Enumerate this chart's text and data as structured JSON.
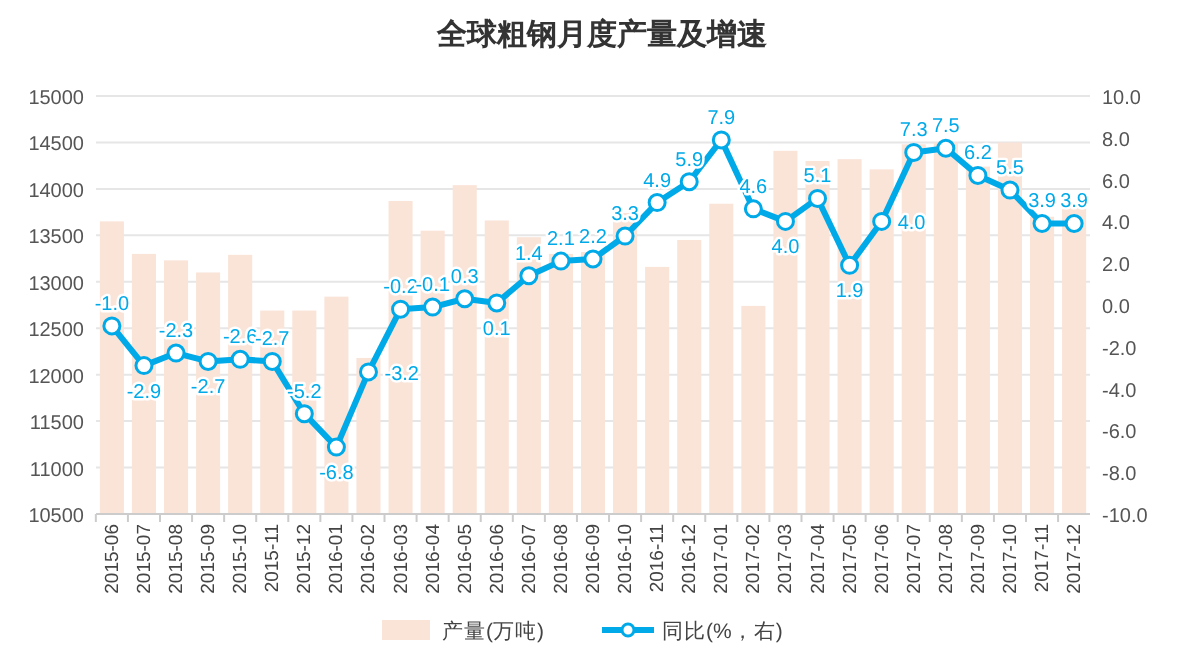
{
  "chart_data": {
    "type": "bar",
    "title": "全球粗钢月度产量及增速",
    "categories": [
      "2015-06",
      "2015-07",
      "2015-08",
      "2015-09",
      "2015-10",
      "2015-11",
      "2015-12",
      "2016-01",
      "2016-02",
      "2016-03",
      "2016-04",
      "2016-05",
      "2016-06",
      "2016-07",
      "2016-08",
      "2016-09",
      "2016-10",
      "2016-11",
      "2016-12",
      "2017-01",
      "2017-02",
      "2017-03",
      "2017-04",
      "2017-05",
      "2017-06",
      "2017-07",
      "2017-08",
      "2017-09",
      "2017-10",
      "2017-11",
      "2017-12"
    ],
    "series": [
      {
        "name": "产量(万吨)",
        "color": "#fae3d7",
        "values": [
          13650,
          13300,
          13230,
          13100,
          13290,
          12690,
          12690,
          12840,
          12180,
          13870,
          13550,
          14040,
          13660,
          13480,
          13300,
          13320,
          13740,
          13160,
          13450,
          13840,
          12740,
          14410,
          14300,
          14320,
          14210,
          14480,
          14500,
          14240,
          14500,
          13700,
          13800
        ]
      },
      {
        "name": "同比(%，右)",
        "type": "line",
        "axis": "y2",
        "color": "#00a9e8",
        "marker": "circle",
        "value_labels": [
          "-1.0",
          "-2.9",
          "-2.3",
          "-2.7",
          "-2.6",
          "-2.7",
          "-5.2",
          "-6.8",
          "-3.2",
          "-0.2",
          "-0.1",
          "0.3",
          "0.1",
          "1.4",
          "2.1",
          "2.2",
          "3.3",
          "4.9",
          "5.9",
          "7.9",
          "4.6",
          "4.0",
          "5.1",
          "1.9",
          "4.0",
          "7.3",
          "7.5",
          "6.2",
          "5.5",
          "3.9",
          "3.9"
        ],
        "values": [
          -1.0,
          -2.9,
          -2.3,
          -2.7,
          -2.6,
          -2.7,
          -5.2,
          -6.8,
          -3.2,
          -0.2,
          -0.1,
          0.3,
          0.1,
          1.4,
          2.1,
          2.2,
          3.3,
          4.9,
          5.9,
          7.9,
          4.6,
          4.0,
          5.1,
          1.9,
          4.0,
          7.3,
          7.5,
          6.2,
          5.5,
          3.9,
          3.9
        ]
      }
    ],
    "ylim": [
      10500,
      15000
    ],
    "yticks": [
      10500,
      11000,
      11500,
      12000,
      12500,
      13000,
      13500,
      14000,
      14500,
      15000
    ],
    "y2lim": [
      -10,
      10
    ],
    "y2ticks": [
      {
        "value": -10,
        "label": "-10.0"
      },
      {
        "value": -8,
        "label": "-8.0"
      },
      {
        "value": -6,
        "label": "-6.0"
      },
      {
        "value": -4,
        "label": "-4.0"
      },
      {
        "value": -2,
        "label": "-2.0"
      },
      {
        "value": 0,
        "label": "0.0"
      },
      {
        "value": 2,
        "label": "2.0"
      },
      {
        "value": 4,
        "label": "4.0"
      },
      {
        "value": 6,
        "label": "6.0"
      },
      {
        "value": 8,
        "label": "8.0"
      },
      {
        "value": 10,
        "label": "10.0"
      }
    ],
    "grid": "y",
    "legend": "bottom"
  }
}
